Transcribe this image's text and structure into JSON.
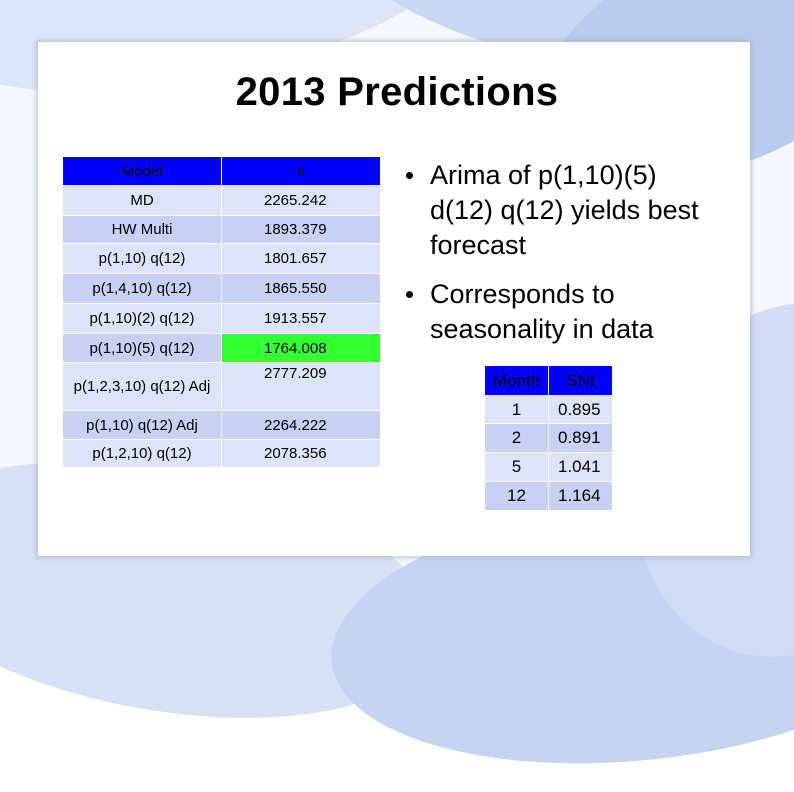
{
  "slide": {
    "title": "2013 Predictions"
  },
  "model_table": {
    "headers": [
      "Model",
      "s"
    ],
    "rows": [
      {
        "model": "MD",
        "s": "2265.242"
      },
      {
        "model": "HW Multi",
        "s": "1893.379"
      },
      {
        "model": "p(1,10) q(12)",
        "s": "1801.657"
      },
      {
        "model": "p(1,4,10) q(12)",
        "s": "1865.550"
      },
      {
        "model": "p(1,10)(2) q(12)",
        "s": "1913.557"
      },
      {
        "model": "p(1,10)(5) q(12)",
        "s": "1764.008"
      },
      {
        "model": "p(1,2,3,10) q(12) Adj",
        "s": "2777.209"
      },
      {
        "model": "p(1,10) q(12) Adj",
        "s": "2264.222"
      },
      {
        "model": "p(1,2,10) q(12)",
        "s": "2078.356"
      }
    ],
    "highlight_color": "#33ff33",
    "header_color": "#0000ff"
  },
  "bullets": [
    "Arima of p(1,10)(5) d(12) q(12) yields best forecast",
    "Corresponds to seasonality in data"
  ],
  "snt_table": {
    "headers": [
      "Month",
      "SNt"
    ],
    "rows": [
      {
        "month": "1",
        "snt": "0.895"
      },
      {
        "month": "2",
        "snt": "0.891"
      },
      {
        "month": "5",
        "snt": "1.041"
      },
      {
        "month": "12",
        "snt": "1.164"
      }
    ]
  }
}
